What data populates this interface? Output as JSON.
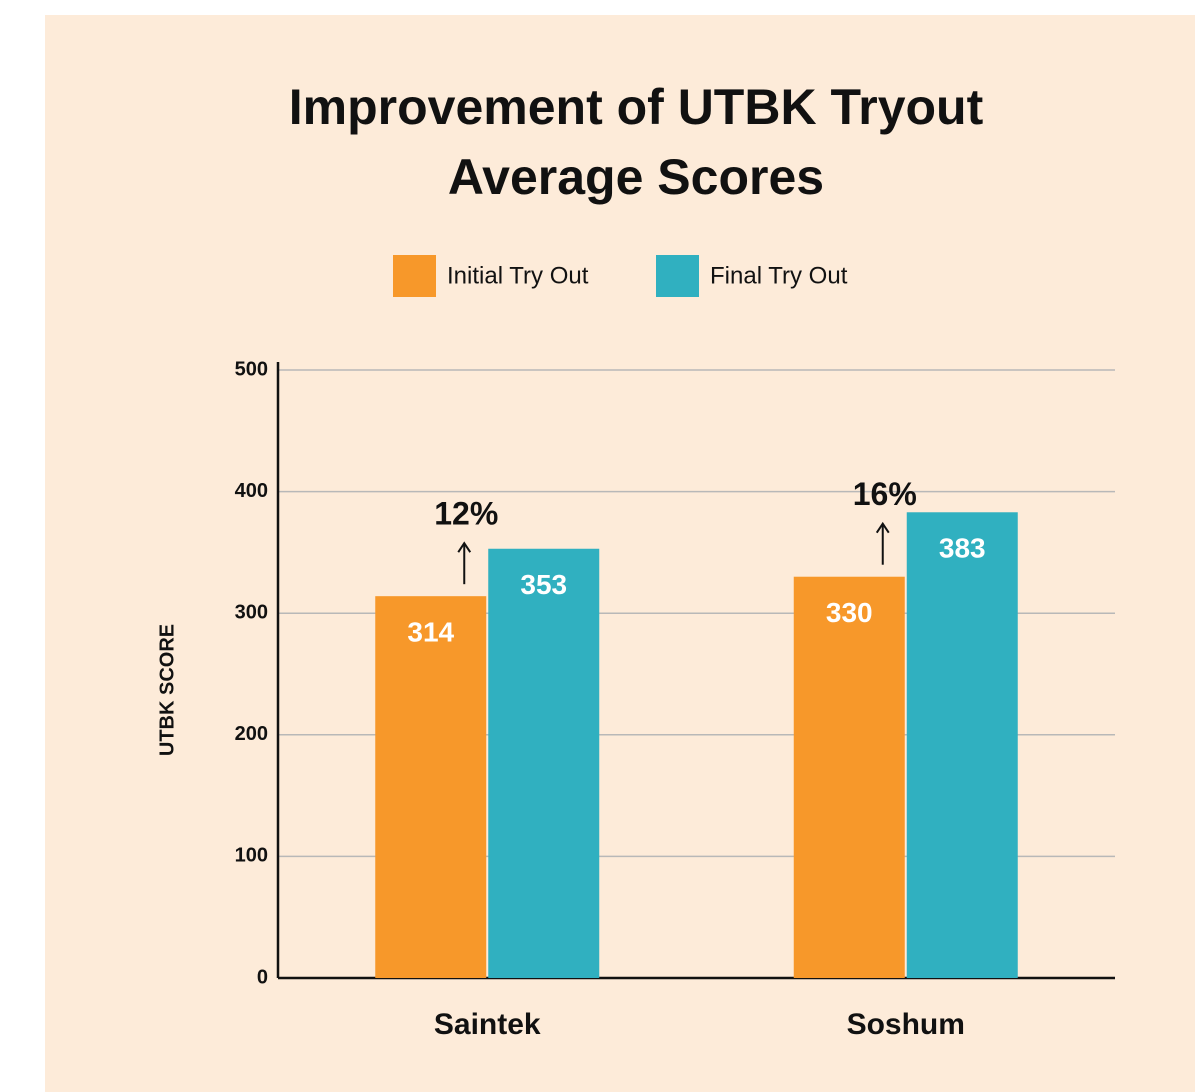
{
  "chart_data": {
    "type": "bar",
    "title": "Improvement of UTBK Tryout Average Scores",
    "y_label": "UTBK SCORE",
    "categories": [
      "Saintek",
      "Soshum"
    ],
    "series": [
      {
        "name": "Initial Try Out",
        "color": "#f7982a",
        "values": [
          314,
          330
        ]
      },
      {
        "name": "Final Try Out",
        "color": "#30b0c0",
        "values": [
          353,
          383
        ]
      }
    ],
    "annotations": [
      "12%",
      "16%"
    ],
    "ylim": [
      0,
      500
    ],
    "yticks": [
      0,
      100,
      200,
      300,
      400,
      500
    ],
    "grid": true
  }
}
